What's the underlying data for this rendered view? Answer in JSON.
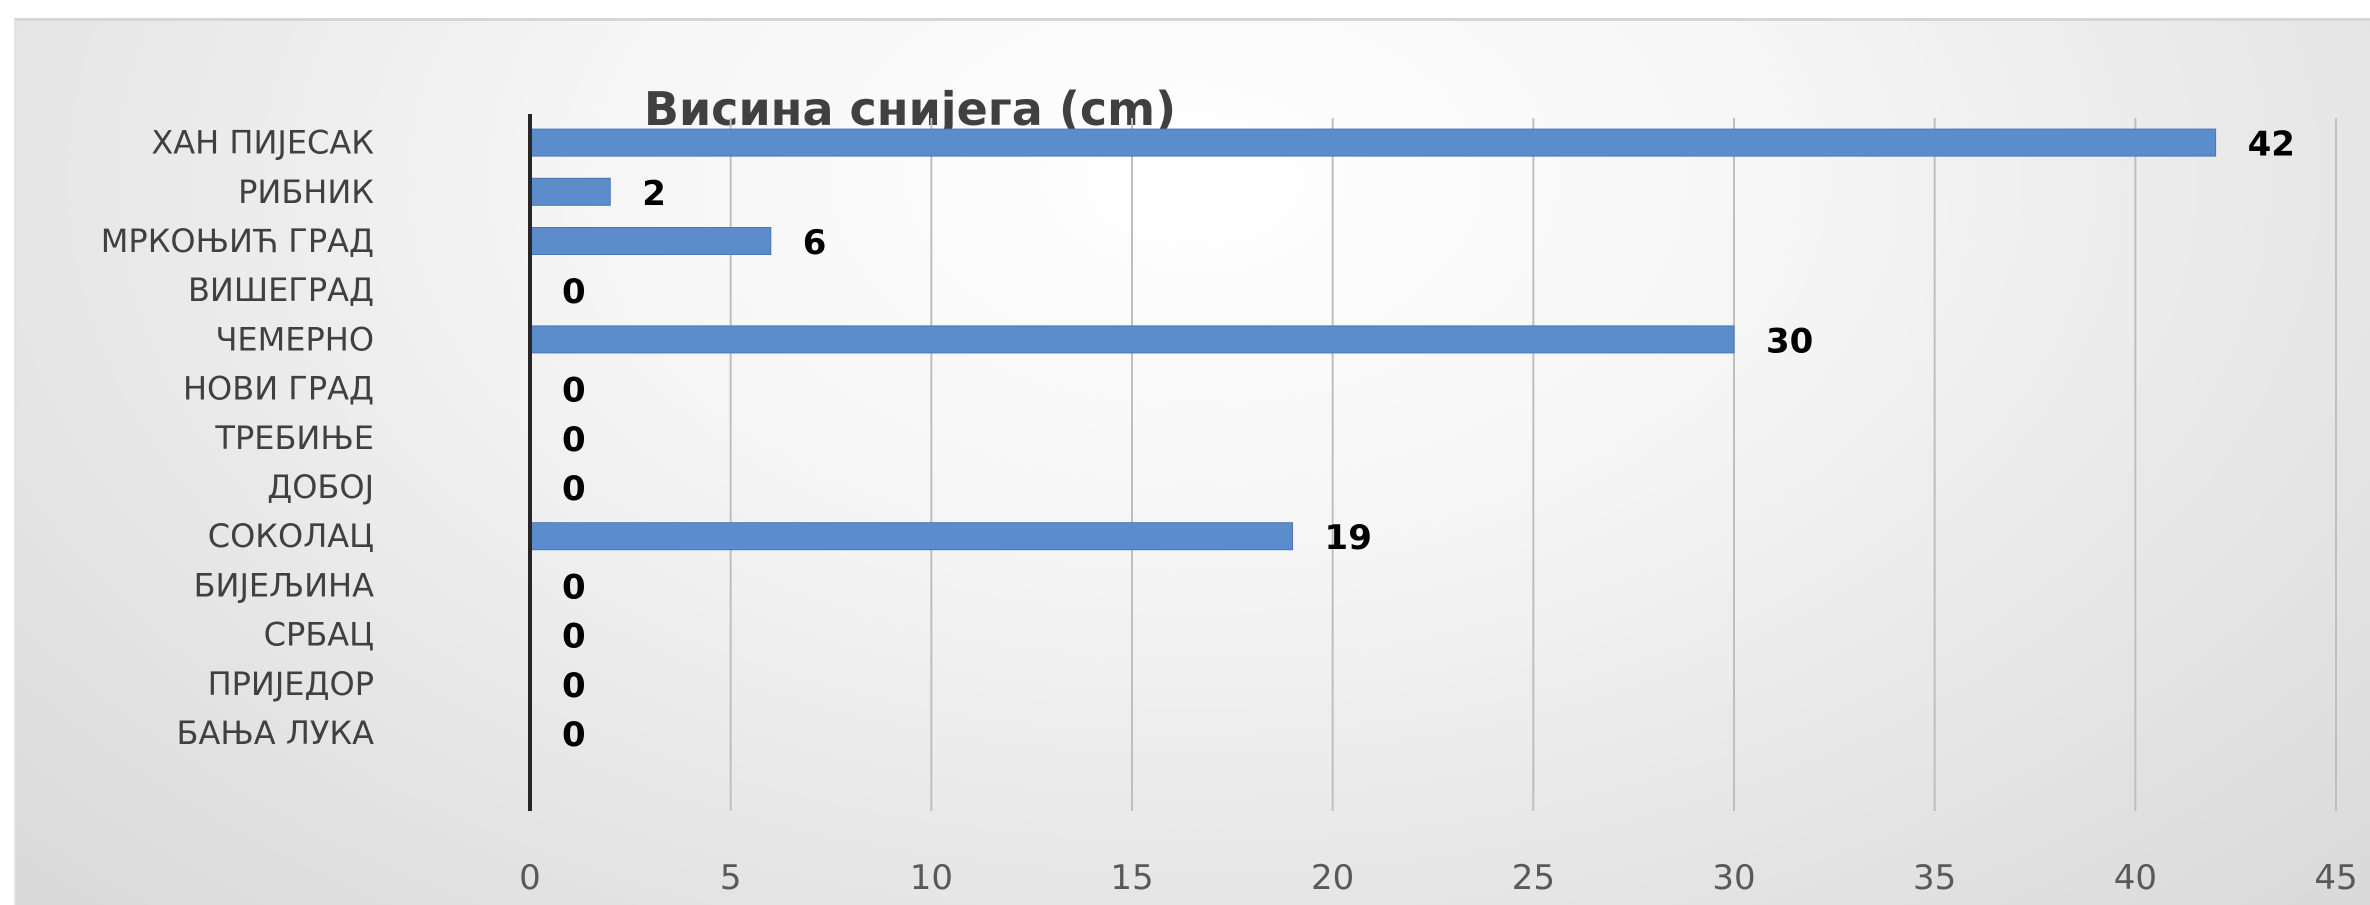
{
  "chart_data": {
    "type": "bar",
    "orientation": "horizontal",
    "title": "Висина снијега (cm)",
    "xlabel": "",
    "ylabel": "",
    "categories": [
      "ХАН ПИЈЕСАК",
      "РИБНИК",
      "МРКОЊИЋ ГРАД",
      "ВИШЕГРАД",
      "ЧЕМЕРНО",
      "НОВИ ГРАД",
      "ТРЕБИЊЕ",
      "ДОБОЈ",
      "СОКОЛАЦ",
      "БИЈЕЉИНА",
      "СРБАЦ",
      "ПРИЈЕДОР",
      "БАЊА ЛУКА"
    ],
    "values": [
      42,
      2,
      6,
      0,
      30,
      0,
      0,
      0,
      19,
      0,
      0,
      0,
      0
    ],
    "data_labels": [
      "42",
      "2",
      "6",
      "0",
      "30",
      "0",
      "0",
      "0",
      "19",
      "0",
      "0",
      "0",
      "0"
    ],
    "xlim": [
      0,
      45
    ],
    "x_ticks": [
      "0",
      "5",
      "10",
      "15",
      "20",
      "25",
      "30",
      "35",
      "40",
      "45"
    ],
    "grid": "vertical",
    "legend": "none",
    "colors": {
      "bar": "#5b8ccc",
      "bar_edge": "#4a78b4",
      "grid": "#bfbfbf",
      "axis": "#262626",
      "title": "#404040",
      "category_text": "#404040",
      "tick_text": "#595959",
      "data_label_text": "#000000"
    }
  }
}
